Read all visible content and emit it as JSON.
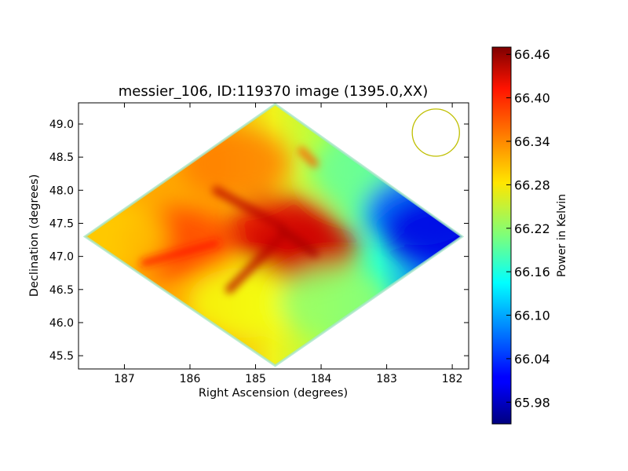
{
  "chart_data": {
    "type": "heatmap",
    "title": "messier_106, ID:119370 image (1395.0,XX)",
    "xlabel": "Right Ascension (degrees)",
    "ylabel": "Declination (degrees)",
    "xlim": [
      187.7,
      181.75
    ],
    "ylim": [
      45.3,
      49.32
    ],
    "x_ticks": [
      "187",
      "186",
      "185",
      "184",
      "183",
      "182"
    ],
    "y_ticks": [
      "45.5",
      "46.0",
      "46.5",
      "47.0",
      "47.5",
      "48.0",
      "48.5",
      "49.0"
    ],
    "footprint": {
      "corners_ra_dec": [
        [
          184.7,
          49.3
        ],
        [
          181.85,
          47.3
        ],
        [
          184.7,
          45.35
        ],
        [
          187.6,
          47.3
        ]
      ]
    },
    "beam_circle": {
      "ra": 182.25,
      "dec": 48.87,
      "radius_deg": 0.36,
      "color": "#bfbf00"
    },
    "colorbar": {
      "label": "Power in Kelvin",
      "vmin": 65.95,
      "vmax": 66.47,
      "ticks": [
        "65.98",
        "66.04",
        "66.10",
        "66.16",
        "66.22",
        "66.28",
        "66.34",
        "66.40",
        "66.46"
      ],
      "colormap": "jet"
    },
    "regions": [
      {
        "ra": 186.2,
        "dec": 47.2,
        "value": 66.37
      },
      {
        "ra": 185.3,
        "dec": 48.4,
        "value": 66.34
      },
      {
        "ra": 184.6,
        "dec": 47.4,
        "value": 66.42
      },
      {
        "ra": 184.3,
        "dec": 47.1,
        "value": 66.43
      },
      {
        "ra": 185.2,
        "dec": 46.3,
        "value": 66.27
      },
      {
        "ra": 183.8,
        "dec": 46.3,
        "value": 66.22
      },
      {
        "ra": 183.3,
        "dec": 48.3,
        "value": 66.2
      },
      {
        "ra": 182.5,
        "dec": 47.7,
        "value": 66.06
      },
      {
        "ra": 182.2,
        "dec": 47.4,
        "value": 66.0
      },
      {
        "ra": 187.2,
        "dec": 47.3,
        "value": 66.3
      }
    ]
  }
}
